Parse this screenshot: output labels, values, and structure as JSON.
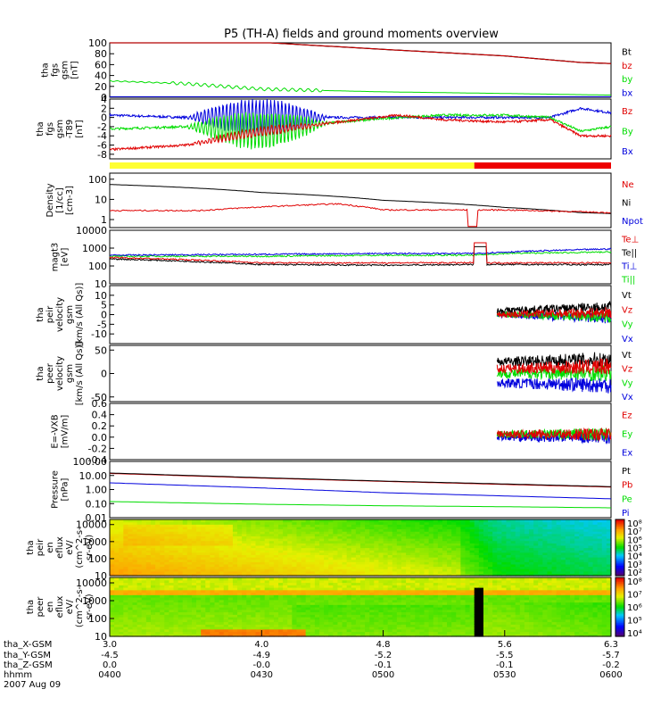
{
  "title": "P5 (TH-A) fields and ground moments overview",
  "colors": {
    "black": "#000000",
    "red": "#e00000",
    "green": "#00dd00",
    "blue": "#0000dd",
    "yellow": "#ffff33",
    "bar_red": "#ee0000"
  },
  "chart_data": [
    {
      "type": "line",
      "name": "fgs-magnitude",
      "ylabel": [
        "tha",
        "fgs",
        "gsm",
        "[nT]"
      ],
      "ylim": [
        0,
        100
      ],
      "ticks": [
        "100",
        "80",
        "60",
        "40",
        "20",
        "0"
      ],
      "legend": [
        "Bt",
        "bz",
        "by",
        "bx"
      ],
      "series": [
        {
          "name": "Bt",
          "x": [
            3.0,
            4.0,
            4.8,
            5.6,
            6.1,
            6.3
          ],
          "values": [
            132,
            101,
            88,
            76,
            64,
            62
          ]
        },
        {
          "name": "bz",
          "x": [
            3.0,
            4.0,
            4.8,
            5.6,
            6.1,
            6.3
          ],
          "values": [
            132,
            101,
            88,
            76,
            64,
            62
          ]
        },
        {
          "name": "by",
          "x": [
            3.0,
            3.5,
            4.0,
            4.8,
            5.6,
            6.3
          ],
          "values": [
            30,
            25,
            15,
            10,
            7,
            4
          ]
        },
        {
          "name": "bx",
          "x": [
            3.0,
            4.0,
            4.8,
            5.6,
            6.3
          ],
          "values": [
            1,
            1,
            1,
            1,
            1
          ]
        }
      ]
    },
    {
      "type": "line",
      "name": "fgs-t89",
      "ylabel": [
        "tha",
        "fgs",
        "gsm",
        "-T89",
        "[nT]"
      ],
      "ylim": [
        -9,
        4
      ],
      "ticks": [
        "4",
        "2",
        "0",
        "-2",
        "-4",
        "-6",
        "-8"
      ],
      "legend": [
        "Bz",
        "By",
        "Bx"
      ],
      "series": [
        {
          "name": "Bz",
          "x": [
            3.0,
            3.5,
            4.0,
            4.5,
            4.9,
            5.2,
            5.6,
            5.9,
            6.1,
            6.3
          ],
          "values": [
            -7,
            -6,
            -3,
            -1,
            0.5,
            -0.5,
            -1,
            -0.5,
            -4,
            -4
          ]
        },
        {
          "name": "By",
          "x": [
            3.0,
            3.5,
            4.0,
            4.5,
            4.9,
            5.2,
            5.6,
            5.9,
            6.1,
            6.3
          ],
          "values": [
            -2.5,
            -2,
            -3,
            -1,
            0,
            0.5,
            0.5,
            0,
            -3,
            -2
          ]
        },
        {
          "name": "Bx",
          "x": [
            3.0,
            3.5,
            4.0,
            4.5,
            4.9,
            5.2,
            5.6,
            5.9,
            6.1,
            6.3
          ],
          "values": [
            0.5,
            0,
            0,
            0,
            0,
            0,
            0,
            0,
            2,
            1
          ]
        }
      ]
    },
    {
      "type": "line",
      "name": "density",
      "ylabel": [
        "Density",
        "[1/cc]",
        "[cm-3]"
      ],
      "ylim_log": [
        0.4,
        200
      ],
      "ticks": [
        "100",
        "10",
        "1"
      ],
      "legend": [
        "Ne",
        "Ni",
        "Npot"
      ],
      "series": [
        {
          "name": "Ni",
          "x": [
            3.0,
            4.0,
            4.8,
            5.6,
            6.1,
            6.3
          ],
          "values": [
            55,
            22,
            9,
            4,
            2.2,
            2
          ]
        },
        {
          "name": "Ne",
          "x": [
            3.0,
            3.6,
            4.5,
            4.8,
            5.4,
            5.6,
            6.3
          ],
          "values": [
            2.8,
            2.8,
            6,
            3,
            3,
            3,
            2.2
          ]
        }
      ]
    },
    {
      "type": "line",
      "name": "temperature",
      "ylabel": [
        "magt3",
        "[eV]"
      ],
      "ylim_log": [
        10,
        10000
      ],
      "ticks": [
        "10000",
        "1000",
        "100",
        "10"
      ],
      "legend": [
        "Te⊥",
        "Te||",
        "Ti⊥",
        "Ti||"
      ],
      "series": [
        {
          "name": "Te⊥",
          "x": [
            3.0,
            4.0,
            4.8,
            5.4,
            5.5,
            6.3
          ],
          "values": [
            300,
            150,
            150,
            150,
            150,
            150
          ]
        },
        {
          "name": "Te||",
          "x": [
            3.0,
            4.0,
            4.8,
            5.4,
            5.5,
            6.3
          ],
          "values": [
            250,
            120,
            110,
            120,
            120,
            120
          ]
        },
        {
          "name": "Ti⊥",
          "x": [
            3.0,
            4.0,
            4.8,
            5.4,
            5.6,
            6.3
          ],
          "values": [
            400,
            450,
            500,
            500,
            600,
            900
          ]
        },
        {
          "name": "Ti||",
          "x": [
            3.0,
            4.0,
            4.8,
            5.4,
            5.6,
            6.3
          ],
          "values": [
            350,
            350,
            400,
            400,
            500,
            600
          ]
        }
      ]
    },
    {
      "type": "line",
      "name": "peir-velocity",
      "ylabel": [
        "tha",
        "peir",
        "velocity",
        "gsm",
        "[km/s (All Qs)]"
      ],
      "ylim": [
        -15,
        15
      ],
      "ticks": [
        "10",
        "5",
        "0",
        "-5",
        "-10"
      ],
      "legend": [
        "Vt",
        "Vz",
        "Vy",
        "Vx"
      ],
      "series": [
        {
          "name": "Vt",
          "x": [
            5.55,
            6.3
          ],
          "values": [
            2,
            4
          ]
        },
        {
          "name": "Vz",
          "x": [
            5.55,
            6.3
          ],
          "values": [
            0,
            1
          ]
        },
        {
          "name": "Vy",
          "x": [
            5.55,
            6.3
          ],
          "values": [
            0,
            -1
          ]
        },
        {
          "name": "Vx",
          "x": [
            5.55,
            6.3
          ],
          "values": [
            0,
            -2
          ]
        }
      ]
    },
    {
      "type": "line",
      "name": "peer-velocity",
      "ylabel": [
        "tha",
        "peer",
        "velocity",
        "gsm",
        "[km/s (All Qs)]"
      ],
      "ylim": [
        -60,
        60
      ],
      "ticks": [
        "50",
        "0",
        "-50"
      ],
      "legend": [
        "Vt",
        "Vz",
        "Vy",
        "Vx"
      ],
      "series": [
        {
          "name": "Vt",
          "x": [
            5.55,
            6.3
          ],
          "values": [
            25,
            30
          ]
        },
        {
          "name": "Vz",
          "x": [
            5.55,
            6.3
          ],
          "values": [
            10,
            15
          ]
        },
        {
          "name": "Vy",
          "x": [
            5.55,
            6.3
          ],
          "values": [
            0,
            0
          ]
        },
        {
          "name": "Vx",
          "x": [
            5.55,
            6.3
          ],
          "values": [
            -20,
            -25
          ]
        }
      ]
    },
    {
      "type": "line",
      "name": "efield",
      "ylabel": [
        "E=-VXB",
        "[mV/m]"
      ],
      "ylim": [
        -0.4,
        0.6
      ],
      "ticks": [
        "0.6",
        "0.4",
        "0.2",
        "0.0",
        "-0.2",
        "-0.4"
      ],
      "legend": [
        "Ez",
        "Ey",
        "Ex"
      ],
      "series": [
        {
          "name": "Ez",
          "x": [
            5.55,
            6.3
          ],
          "values": [
            0.05,
            0.05
          ]
        },
        {
          "name": "Ey",
          "x": [
            5.55,
            6.3
          ],
          "values": [
            0.05,
            0.05
          ]
        },
        {
          "name": "Ex",
          "x": [
            5.55,
            6.3
          ],
          "values": [
            0.0,
            0.0
          ]
        }
      ]
    },
    {
      "type": "line",
      "name": "pressure",
      "ylabel": [
        "Pressure",
        "[nPa]"
      ],
      "ylim_log": [
        0.01,
        100
      ],
      "ticks": [
        "100.00",
        "10.00",
        "1.00",
        "0.10",
        "0.01"
      ],
      "legend": [
        "Pt",
        "Pb",
        "Pe",
        "Pi"
      ],
      "series": [
        {
          "name": "Pt",
          "x": [
            3.0,
            4.0,
            4.8,
            5.6,
            6.3
          ],
          "values": [
            15,
            7,
            4,
            2.5,
            1.6
          ]
        },
        {
          "name": "Pb",
          "x": [
            3.0,
            4.0,
            4.8,
            5.6,
            6.3
          ],
          "values": [
            14,
            6.5,
            3.8,
            2.3,
            1.5
          ]
        },
        {
          "name": "Pi",
          "x": [
            3.0,
            4.0,
            4.8,
            5.6,
            6.3
          ],
          "values": [
            3,
            1.3,
            0.6,
            0.35,
            0.22
          ]
        },
        {
          "name": "Pe",
          "x": [
            3.0,
            4.0,
            4.8,
            5.6,
            6.3
          ],
          "values": [
            0.14,
            0.09,
            0.07,
            0.06,
            0.05
          ]
        }
      ]
    },
    {
      "type": "heatmap",
      "name": "peir-eflux",
      "ylabel": [
        "tha",
        "peir",
        "en",
        "eflux",
        "eV/",
        "(cm^2-s-",
        "sr-eV)"
      ],
      "ylim_log": [
        10,
        20000
      ],
      "ticks": [
        "10000",
        "1000",
        "100",
        "10"
      ],
      "colorbar_ticks": [
        "10⁸",
        "10⁷",
        "10⁶",
        "10⁵",
        "10⁴",
        "10³",
        "10²"
      ]
    },
    {
      "type": "heatmap",
      "name": "peer-eflux",
      "ylabel": [
        "tha",
        "peer",
        "en",
        "eflux",
        "eV/",
        "(cm^2-s-",
        "sr-eV)"
      ],
      "ylim_log": [
        10,
        20000
      ],
      "ticks": [
        "10000",
        "1000",
        "100",
        "10"
      ],
      "colorbar_ticks": [
        "10⁸",
        "10⁷",
        "10⁶",
        "10⁵",
        "10⁴"
      ]
    }
  ],
  "x_axis": {
    "xlim": [
      3.0,
      6.3
    ],
    "row_labels": [
      "tha_X-GSM",
      "tha_Y-GSM",
      "tha_Z-GSM",
      "hhmm",
      "2007 Aug 09"
    ],
    "ticks": [
      {
        "x": 3.0,
        "values": [
          "3.0",
          "-4.5",
          "0.0",
          "0400"
        ]
      },
      {
        "x": 4.0,
        "values": [
          "4.0",
          "-4.9",
          "-0.0",
          "0430"
        ]
      },
      {
        "x": 4.8,
        "values": [
          "4.8",
          "-5.2",
          "-0.1",
          "0500"
        ]
      },
      {
        "x": 5.6,
        "values": [
          "5.6",
          "-5.5",
          "-0.1",
          "0530"
        ]
      },
      {
        "x": 6.3,
        "values": [
          "6.3",
          "-5.7",
          "-0.2",
          "0600"
        ]
      }
    ]
  }
}
